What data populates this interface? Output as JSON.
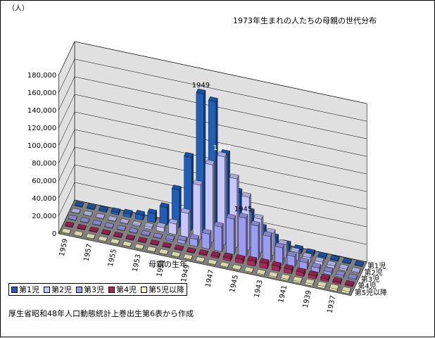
{
  "chart_data": {
    "type": "bar",
    "title": "1973年生まれの人たちの母親の世代分布",
    "unit_label": "（人）",
    "xlabel": "母親の生年",
    "source_note": "厚生省昭和48年人口動態統計上巻出生第6表から作成",
    "y_ticks": [
      "0",
      "20,000",
      "40,000",
      "60,000",
      "80,000",
      "100,000",
      "120,000",
      "140,000",
      "160,000",
      "180,000"
    ],
    "ylim": [
      0,
      180000
    ],
    "x_tick_labels": [
      "1959",
      "1957",
      "1955",
      "1953",
      "1951",
      "1949",
      "1947",
      "1945",
      "1943",
      "1941",
      "1939",
      "1937"
    ],
    "annotations": [
      {
        "text": "1949",
        "series": 0,
        "category": 1949
      },
      {
        "text": "1947",
        "series": 1,
        "category": 1947
      },
      {
        "text": "1945",
        "series": 2,
        "category": 1945
      }
    ],
    "categories": [
      1959,
      1958,
      1957,
      1956,
      1955,
      1954,
      1953,
      1952,
      1951,
      1950,
      1949,
      1948,
      1947,
      1946,
      1945,
      1944,
      1943,
      1942,
      1941,
      1940,
      1939,
      1938,
      1937,
      1936
    ],
    "series": [
      {
        "name": "第1児",
        "color": "#1f5fb8",
        "values": [
          300,
          800,
          1600,
          2600,
          3800,
          5500,
          10000,
          20000,
          43000,
          83000,
          158000,
          152000,
          95000,
          55000,
          35000,
          20000,
          12000,
          7000,
          4500,
          3000,
          2000,
          1400,
          1000,
          700
        ]
      },
      {
        "name": "第2児",
        "color": "#c8c8ff",
        "values": [
          0,
          0,
          0,
          200,
          500,
          1000,
          2000,
          5000,
          12000,
          27000,
          62000,
          88000,
          100000,
          78000,
          60000,
          38000,
          25000,
          15000,
          9000,
          6000,
          4000,
          2500,
          1700,
          1100
        ]
      },
      {
        "name": "第3児",
        "color": "#9c9cf0",
        "values": [
          0,
          0,
          0,
          0,
          0,
          0,
          200,
          600,
          1500,
          3500,
          8000,
          17000,
          28000,
          40000,
          44000,
          38000,
          29000,
          19000,
          12000,
          8000,
          5000,
          3200,
          2000,
          1300
        ]
      },
      {
        "name": "第4児",
        "color": "#a8285a",
        "values": [
          0,
          0,
          0,
          0,
          0,
          0,
          0,
          0,
          0,
          300,
          700,
          1200,
          2000,
          3200,
          4500,
          5500,
          6000,
          5500,
          5000,
          4300,
          3500,
          2800,
          2100,
          1500
        ]
      },
      {
        "name": "第5児以降",
        "color": "#ffffcc",
        "values": [
          0,
          0,
          0,
          0,
          0,
          0,
          0,
          0,
          0,
          0,
          100,
          200,
          300,
          500,
          700,
          900,
          1100,
          1300,
          1500,
          1700,
          1900,
          2000,
          2000,
          1900
        ]
      }
    ]
  }
}
